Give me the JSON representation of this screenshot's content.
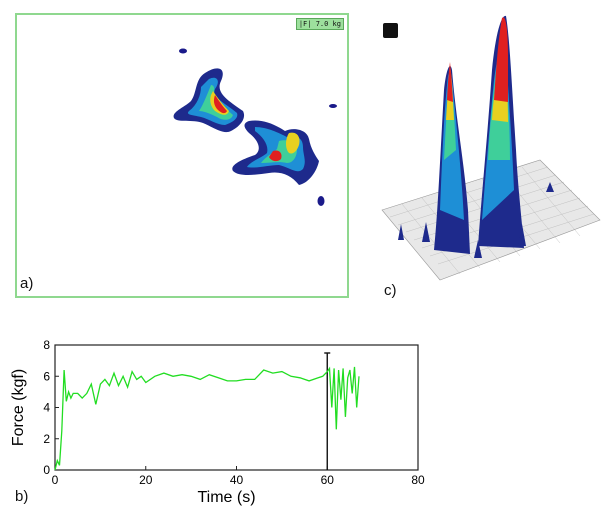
{
  "panel_a": {
    "label": "a)",
    "badge": "|F| 7.0 kg"
  },
  "panel_c": {
    "label": "c)",
    "rotate_icon": "rotate-icon"
  },
  "panel_b": {
    "label": "b)"
  },
  "chart_data": {
    "type": "line",
    "xlabel": "Time (s)",
    "ylabel": "Force (kgf)",
    "xlim": [
      0,
      80
    ],
    "ylim": [
      0,
      8
    ],
    "x_ticks": [
      "0",
      "20",
      "40",
      "60",
      "80"
    ],
    "y_ticks": [
      "0",
      "2",
      "4",
      "6",
      "8"
    ],
    "grid": false,
    "series": [
      {
        "color": "#22dd22",
        "x": [
          0,
          0.5,
          1,
          1.5,
          2,
          2.5,
          3,
          3.5,
          4,
          5,
          6,
          7,
          8,
          9,
          10,
          11,
          12,
          13,
          14,
          15,
          16,
          17,
          18,
          19,
          20,
          22,
          24,
          26,
          28,
          30,
          32,
          34,
          36,
          38,
          40,
          42,
          44,
          46,
          48,
          50,
          52,
          54,
          56,
          58,
          59,
          60,
          60.5,
          61,
          61.5,
          62,
          62.5,
          63,
          63.5,
          64,
          64.5,
          65,
          65.5,
          66,
          66.5,
          67
        ],
        "y": [
          0,
          0.6,
          0.3,
          2.5,
          6.4,
          4.4,
          5.0,
          4.6,
          4.9,
          4.9,
          4.6,
          4.9,
          5.5,
          4.2,
          5.5,
          5.8,
          5.4,
          6.2,
          5.4,
          6.0,
          5.3,
          6.3,
          5.8,
          6.0,
          5.6,
          6.0,
          6.2,
          6.0,
          6.1,
          6.0,
          5.8,
          6.1,
          5.9,
          5.7,
          5.7,
          5.8,
          5.8,
          6.4,
          6.2,
          6.3,
          6.0,
          5.9,
          5.7,
          5.9,
          6.0,
          6.3,
          6.5,
          4.0,
          6.5,
          2.6,
          6.4,
          4.5,
          6.5,
          3.4,
          5.9,
          6.4,
          4.9,
          6.6,
          4.0,
          6.0
        ]
      }
    ],
    "marker": {
      "x": 60,
      "color": "#111111"
    }
  }
}
